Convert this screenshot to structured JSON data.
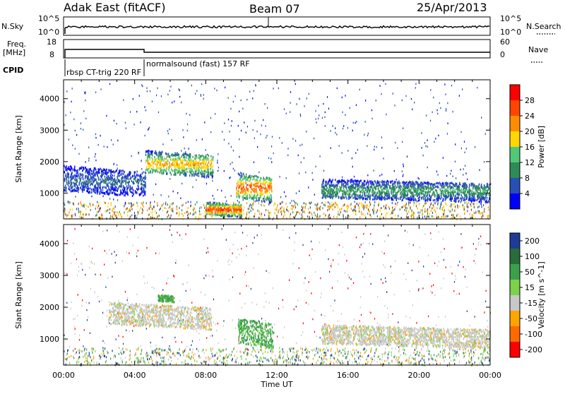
{
  "header": {
    "station": "Adak East (fitACF)",
    "beam": "Beam 07",
    "date": "25/Apr/2013"
  },
  "panels": {
    "nsky_label": "N.Sky",
    "nsky_ticks": [
      "10^5",
      "10^0"
    ],
    "nsearch_label": "N.Search",
    "nsearch_ticks": [
      "10^5",
      "10^0"
    ],
    "freq_label": "Freq.",
    "freq_unit": "[MHz]",
    "freq_ticks": [
      "18",
      "8"
    ],
    "nave_label": "Nave",
    "nave_ticks": [
      "60",
      "0"
    ],
    "cpid_label": "CPID",
    "cpid_entries": [
      "rbsp CT-trig 220 RF",
      "normalsound (fast) 157 RF"
    ]
  },
  "chart_data": [
    {
      "type": "heatmap",
      "title": "",
      "xlabel": "Time UT",
      "ylabel": "Slant Range [km]",
      "x_range": [
        "00:00",
        "24:00"
      ],
      "ylim": [
        180,
        4600
      ],
      "x_ticks": [
        "00:00",
        "04:00",
        "08:00",
        "12:00",
        "16:00",
        "20:00",
        "00:00"
      ],
      "y_ticks": [
        1000,
        2000,
        3000,
        4000
      ],
      "colorbar": {
        "label": "Power [dB]",
        "ticks": [
          4,
          8,
          12,
          16,
          20,
          24,
          28
        ],
        "range": [
          0,
          32
        ],
        "colors": [
          "#0000ff",
          "#2850b4",
          "#2e8b57",
          "#50c878",
          "#ffd700",
          "#ff8c00",
          "#ff4500",
          "#ff0000"
        ]
      },
      "features": [
        {
          "start_hour": 0.0,
          "end_hour": 4.6,
          "range_km": [
            1000,
            1800
          ],
          "power_db": 8
        },
        {
          "start_hour": 4.6,
          "end_hour": 8.4,
          "range_km": [
            1600,
            2300
          ],
          "power_db": 22
        },
        {
          "start_hour": 9.7,
          "end_hour": 11.7,
          "range_km": [
            800,
            1600
          ],
          "power_db": 26
        },
        {
          "start_hour": 14.5,
          "end_hour": 24.0,
          "range_km": [
            800,
            1400
          ],
          "power_db": 12
        },
        {
          "start_hour": 8.0,
          "end_hour": 10.0,
          "range_km": [
            300,
            700
          ],
          "power_db": 28
        }
      ]
    },
    {
      "type": "heatmap",
      "title": "",
      "xlabel": "Time UT",
      "ylabel": "Slant Range [km]",
      "x_range": [
        "00:00",
        "24:00"
      ],
      "ylim": [
        180,
        4600
      ],
      "x_ticks": [
        "00:00",
        "04:00",
        "08:00",
        "12:00",
        "16:00",
        "20:00",
        "00:00"
      ],
      "y_ticks": [
        1000,
        2000,
        3000,
        4000
      ],
      "colorbar": {
        "label": "Velocity [m s^-1]",
        "ticks": [
          "200",
          "100",
          "50",
          "15",
          "-15",
          "-50",
          "-100",
          "-200"
        ],
        "range": [
          -250,
          250
        ],
        "colors": [
          "#1e3c96",
          "#2a6b3a",
          "#3aa04a",
          "#7cd24a",
          "#c8c8c8",
          "#ffa500",
          "#ff6a00",
          "#ff0000"
        ]
      },
      "features": [
        {
          "start_hour": 2.5,
          "end_hour": 8.3,
          "range_km": [
            1400,
            2100
          ],
          "velocity": 0
        },
        {
          "start_hour": 9.8,
          "end_hour": 11.8,
          "range_km": [
            800,
            1600
          ],
          "velocity": 60
        },
        {
          "start_hour": 5.3,
          "end_hour": 6.2,
          "range_km": [
            2200,
            2400
          ],
          "velocity": 60
        },
        {
          "start_hour": 14.5,
          "end_hour": 24.0,
          "range_km": [
            800,
            1400
          ],
          "velocity": 0
        }
      ]
    }
  ]
}
